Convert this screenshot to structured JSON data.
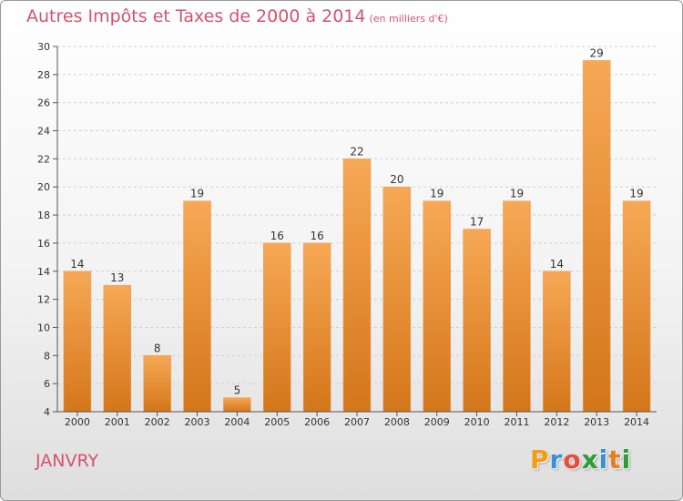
{
  "header": {
    "title": "Autres Impôts et Taxes de 2000 à 2014",
    "subtitle": "(en milliers d'€)"
  },
  "footer": {
    "commune": "JANVRY",
    "logo_letters": [
      "P",
      "r",
      "o",
      "x",
      "i",
      "t",
      "i"
    ],
    "logo_colors": [
      "#f39c12",
      "#3b8fd4",
      "#e74c3c",
      "#2e9b3a",
      "#3b8fd4",
      "#e67e22",
      "#2e9b3a"
    ]
  },
  "chart_data": {
    "type": "bar",
    "title": "Autres Impôts et Taxes de 2000 à 2014",
    "subtitle": "(en milliers d'€)",
    "categories": [
      "2000",
      "2001",
      "2002",
      "2003",
      "2004",
      "2005",
      "2006",
      "2007",
      "2008",
      "2009",
      "2010",
      "2011",
      "2012",
      "2013",
      "2014"
    ],
    "values": [
      14,
      13,
      8,
      19,
      5,
      16,
      16,
      22,
      20,
      19,
      17,
      19,
      14,
      29,
      19
    ],
    "ylim": [
      4,
      30
    ],
    "yticks": [
      4,
      6,
      8,
      10,
      12,
      14,
      16,
      18,
      20,
      22,
      24,
      26,
      28,
      30
    ],
    "grid": true,
    "bar_color_light": "#f7a855",
    "bar_color_dark": "#d4761a",
    "xlabel": "",
    "ylabel": ""
  }
}
